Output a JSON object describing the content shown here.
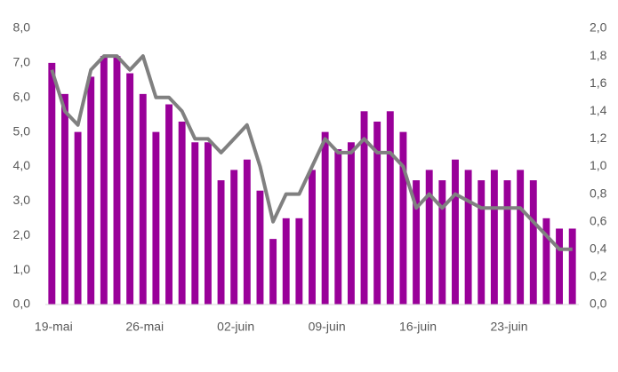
{
  "chart_data": {
    "type": "bar_line",
    "categories": [
      "19-mai",
      null,
      null,
      null,
      null,
      null,
      null,
      "26-mai",
      null,
      null,
      null,
      null,
      null,
      null,
      "02-juin",
      null,
      null,
      null,
      null,
      null,
      null,
      "09-juin",
      null,
      null,
      null,
      null,
      null,
      null,
      "16-juin",
      null,
      null,
      null,
      null,
      null,
      null,
      "23-juin",
      null,
      null,
      null,
      null,
      null
    ],
    "series": [
      {
        "type": "bar",
        "color": "#990099",
        "values": [
          7.0,
          6.1,
          5.0,
          6.6,
          7.2,
          7.2,
          6.7,
          6.1,
          5.0,
          5.8,
          5.3,
          4.7,
          4.7,
          3.6,
          3.9,
          4.2,
          3.3,
          1.9,
          2.5,
          2.5,
          3.9,
          5.0,
          4.5,
          4.7,
          5.6,
          5.3,
          5.6,
          5.0,
          3.6,
          3.9,
          3.6,
          4.2,
          3.9,
          3.6,
          3.9,
          3.6,
          3.9,
          3.6,
          2.5,
          2.2,
          2.2
        ]
      },
      {
        "type": "line",
        "axis": "y2",
        "color": "#808080",
        "values": [
          1.7,
          1.4,
          1.3,
          1.7,
          1.8,
          1.8,
          1.7,
          1.8,
          1.5,
          1.5,
          1.4,
          1.2,
          1.2,
          1.1,
          1.2,
          1.3,
          1.0,
          0.6,
          0.8,
          0.8,
          1.0,
          1.2,
          1.1,
          1.1,
          1.2,
          1.1,
          1.1,
          1.0,
          0.7,
          0.8,
          0.7,
          0.8,
          0.75,
          0.7,
          0.7,
          0.7,
          0.7,
          0.6,
          0.5,
          0.4,
          0.4
        ]
      }
    ],
    "ylim": [
      0,
      8
    ],
    "yticks": [
      {
        "value": 0,
        "label": "0,0"
      },
      {
        "value": 1,
        "label": "1,0"
      },
      {
        "value": 2,
        "label": "2,0"
      },
      {
        "value": 3,
        "label": "3,0"
      },
      {
        "value": 4,
        "label": "4,0"
      },
      {
        "value": 5,
        "label": "5,0"
      },
      {
        "value": 6,
        "label": "6,0"
      },
      {
        "value": 7,
        "label": "7,0"
      },
      {
        "value": 8,
        "label": "8,0"
      }
    ],
    "y2lim": [
      0,
      2
    ],
    "y2ticks": [
      {
        "value": 0,
        "label": "0,0"
      },
      {
        "value": 0.2,
        "label": "0,2"
      },
      {
        "value": 0.4,
        "label": "0,4"
      },
      {
        "value": 0.6,
        "label": "0,6"
      },
      {
        "value": 0.8,
        "label": "0,8"
      },
      {
        "value": 1.0,
        "label": "1,0"
      },
      {
        "value": 1.2,
        "label": "1,2"
      },
      {
        "value": 1.4,
        "label": "1,4"
      },
      {
        "value": 1.6,
        "label": "1,6"
      },
      {
        "value": 1.8,
        "label": "1,8"
      },
      {
        "value": 2.0,
        "label": "2,0"
      }
    ],
    "grid": false
  }
}
